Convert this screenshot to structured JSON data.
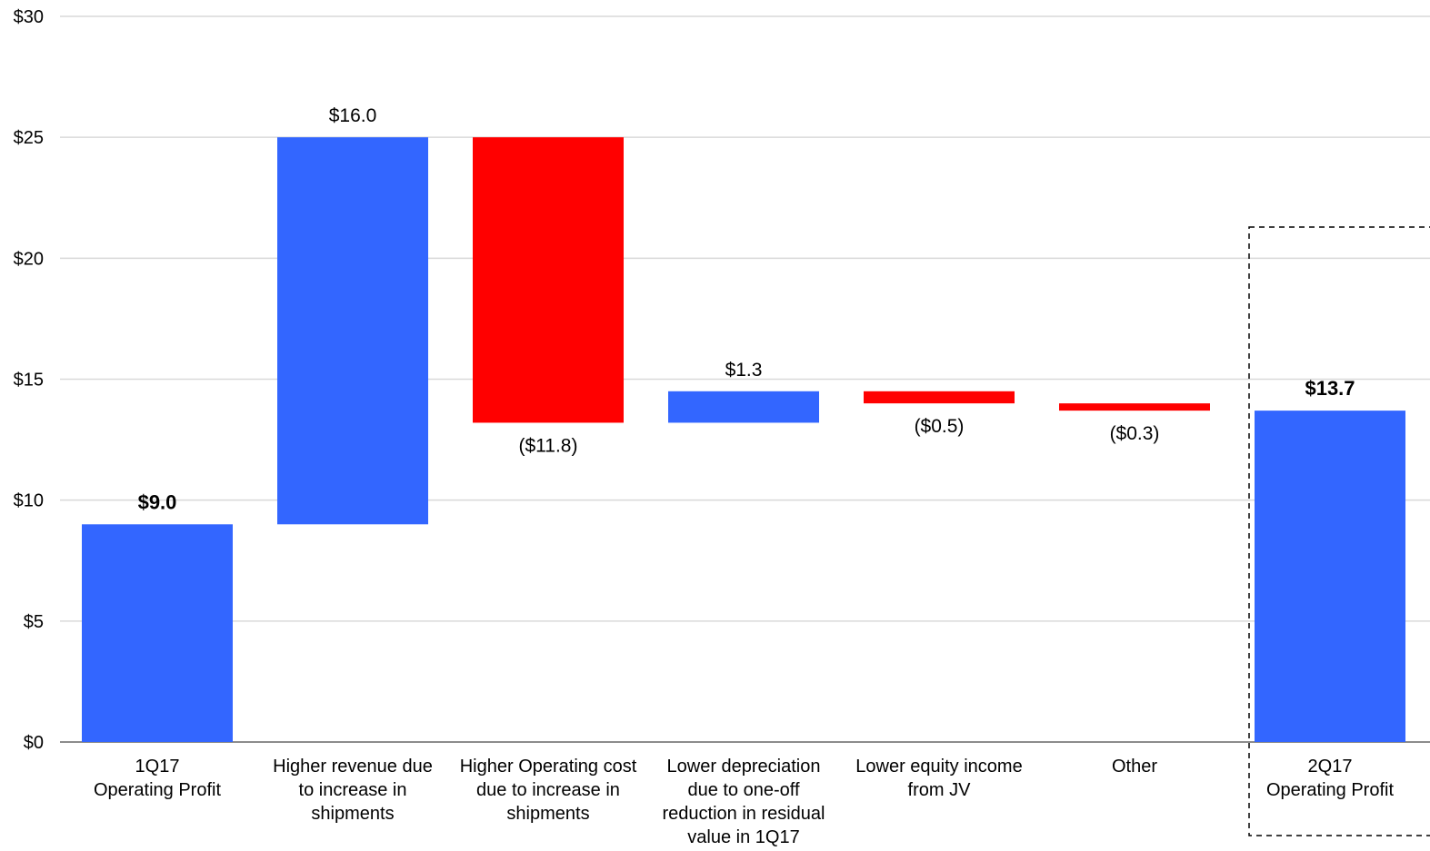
{
  "chart_data": {
    "type": "bar",
    "subtype": "waterfall",
    "title": "",
    "xlabel": "",
    "ylabel": "",
    "ylim": [
      0,
      30
    ],
    "y_ticks": [
      "$0",
      "$5",
      "$10",
      "$15",
      "$20",
      "$25",
      "$30"
    ],
    "y_tick_values": [
      0,
      5,
      10,
      15,
      20,
      25,
      30
    ],
    "grid": true,
    "colors": {
      "increase": "#3366FF",
      "decrease": "#FF0000",
      "total": "#3366FF",
      "grid": "#D9D9D9"
    },
    "categories": [
      "1Q17\nOperating Profit",
      "Higher revenue due\nto increase in\nshipments",
      "Higher Operating cost\ndue to increase in\nshipments",
      "Lower depreciation\ndue to one-off\nreduction in residual\nvalue in 1Q17",
      "Lower equity income\nfrom JV",
      "Other",
      "2Q17\nOperating Profit"
    ],
    "values": [
      9.0,
      16.0,
      -11.8,
      1.3,
      -0.5,
      -0.3,
      13.7
    ],
    "kinds": [
      "total",
      "increase",
      "decrease",
      "increase",
      "decrease",
      "decrease",
      "total"
    ],
    "value_labels": [
      "$9.0",
      "$16.0",
      "($11.8)",
      "$1.3",
      "($0.5)",
      "($0.3)",
      "$13.7"
    ],
    "bold_labels": [
      true,
      false,
      false,
      false,
      false,
      false,
      true
    ],
    "highlighted_category": 6
  }
}
